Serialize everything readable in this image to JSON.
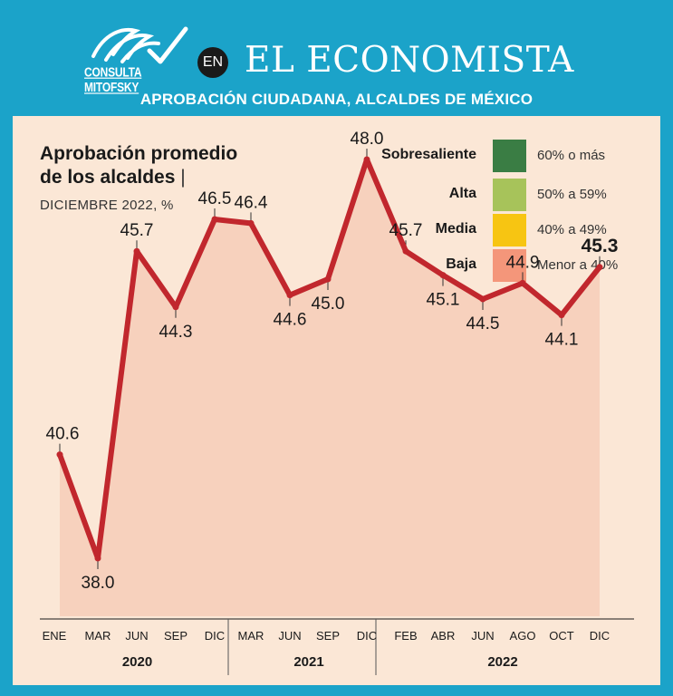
{
  "header": {
    "logo_text": "CONSULTA MITOFSKY",
    "en_badge": "EN",
    "brand": "EL ECONOMISTA",
    "subtitle": "APROBACIÓN CIUDADANA, ALCALDES DE MÉXICO"
  },
  "colors": {
    "frame": "#1ba3c9",
    "panel": "#fbe7d6",
    "line": "#c1272d",
    "area": "#f6c9b4"
  },
  "legend": [
    {
      "label": "Sobresaliente",
      "range": "60% o más",
      "color": "#3a7d44"
    },
    {
      "label": "Alta",
      "range": "50% a 59%",
      "color": "#a7c35a"
    },
    {
      "label": "Media",
      "range": "40% a 49%",
      "color": "#f7c512"
    },
    {
      "label": "Baja",
      "range": "Menor a 40%",
      "color": "#f4967a"
    }
  ],
  "chart_data": {
    "type": "area",
    "title_line1": "Aprobación promedio",
    "title_line2": "de los alcaldes",
    "title_separator": "|",
    "subtitle": "DICIEMBRE 2022, %",
    "categories": [
      "ENE",
      "MAR",
      "JUN",
      "SEP",
      "DIC",
      "MAR",
      "JUN",
      "SEP",
      "DIC",
      "FEB",
      "ABR",
      "JUN",
      "AGO",
      "OCT",
      "DIC"
    ],
    "values": [
      40.6,
      38.0,
      45.7,
      44.3,
      46.5,
      46.4,
      44.6,
      45.0,
      48.0,
      45.7,
      45.1,
      44.5,
      44.9,
      44.1,
      45.3
    ],
    "labels": [
      "40.6",
      "38.0",
      "45.7",
      "44.3",
      "46.5",
      "46.4",
      "44.6",
      "45.0",
      "48.0",
      "45.7",
      "45.1",
      "44.5",
      "44.9",
      "44.1",
      "45.3"
    ],
    "label_side": [
      "above",
      "below",
      "above",
      "below",
      "above",
      "above",
      "below",
      "below",
      "above",
      "above",
      "below",
      "below",
      "above",
      "below",
      "above"
    ],
    "highlight_last": true,
    "years": [
      {
        "label": "2020",
        "from": 0,
        "to": 4
      },
      {
        "label": "2021",
        "from": 5,
        "to": 8
      },
      {
        "label": "2022",
        "from": 9,
        "to": 14
      }
    ],
    "ylim": [
      37,
      49
    ],
    "xlabel": "",
    "ylabel": ""
  }
}
